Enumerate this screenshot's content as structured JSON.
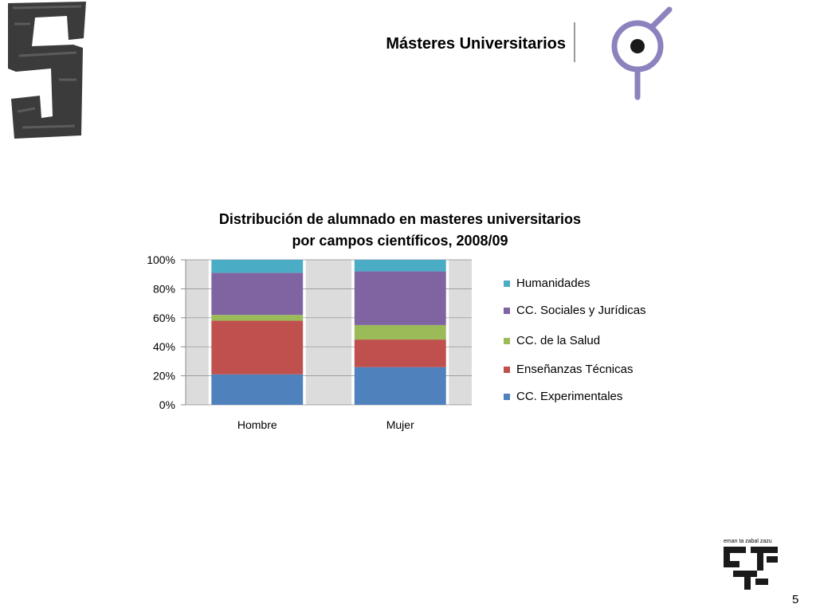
{
  "slide": {
    "title": "Másteres Universitarios",
    "page_number": "5",
    "university_motto": "eman ta zabal zazu"
  },
  "colors": {
    "humanidades": "#4BACC6",
    "sociales": "#8064A2",
    "salud": "#9BBB59",
    "tecnicas": "#C0504D",
    "experimentales": "#4F81BD",
    "logo_purple": "#8C82BE",
    "logo_dark": "#1a1a1a"
  },
  "icons": {
    "brush_logo": "brush-stroke-logo-icon",
    "symbol_logo": "circle-dot-symbol-icon",
    "university_logo": "university-tree-logo-icon"
  },
  "chart_data": {
    "type": "bar",
    "stacked": true,
    "percent": true,
    "title": "Distribución de alumnado en masteres universitarios por campos científicos, 2008/09",
    "title_lines": [
      "Distribución de alumnado en masteres universitarios",
      "por campos científicos, 2008/09"
    ],
    "categories": [
      "Hombre",
      "Mujer"
    ],
    "ylim": [
      0,
      100
    ],
    "yticks": [
      "0%",
      "20%",
      "40%",
      "60%",
      "80%",
      "100%"
    ],
    "grid": true,
    "legend_position": "right",
    "series": [
      {
        "name": "CC. Experimentales",
        "color_key": "experimentales",
        "values": [
          21,
          26
        ]
      },
      {
        "name": "Enseñanzas Técnicas",
        "color_key": "tecnicas",
        "values": [
          37,
          19
        ]
      },
      {
        "name": "CC. de la Salud",
        "color_key": "salud",
        "values": [
          4,
          10
        ]
      },
      {
        "name": "CC. Sociales y Jurídicas",
        "color_key": "sociales",
        "values": [
          29,
          37
        ]
      },
      {
        "name": "Humanidades",
        "color_key": "humanidades",
        "values": [
          9,
          8
        ]
      }
    ]
  }
}
